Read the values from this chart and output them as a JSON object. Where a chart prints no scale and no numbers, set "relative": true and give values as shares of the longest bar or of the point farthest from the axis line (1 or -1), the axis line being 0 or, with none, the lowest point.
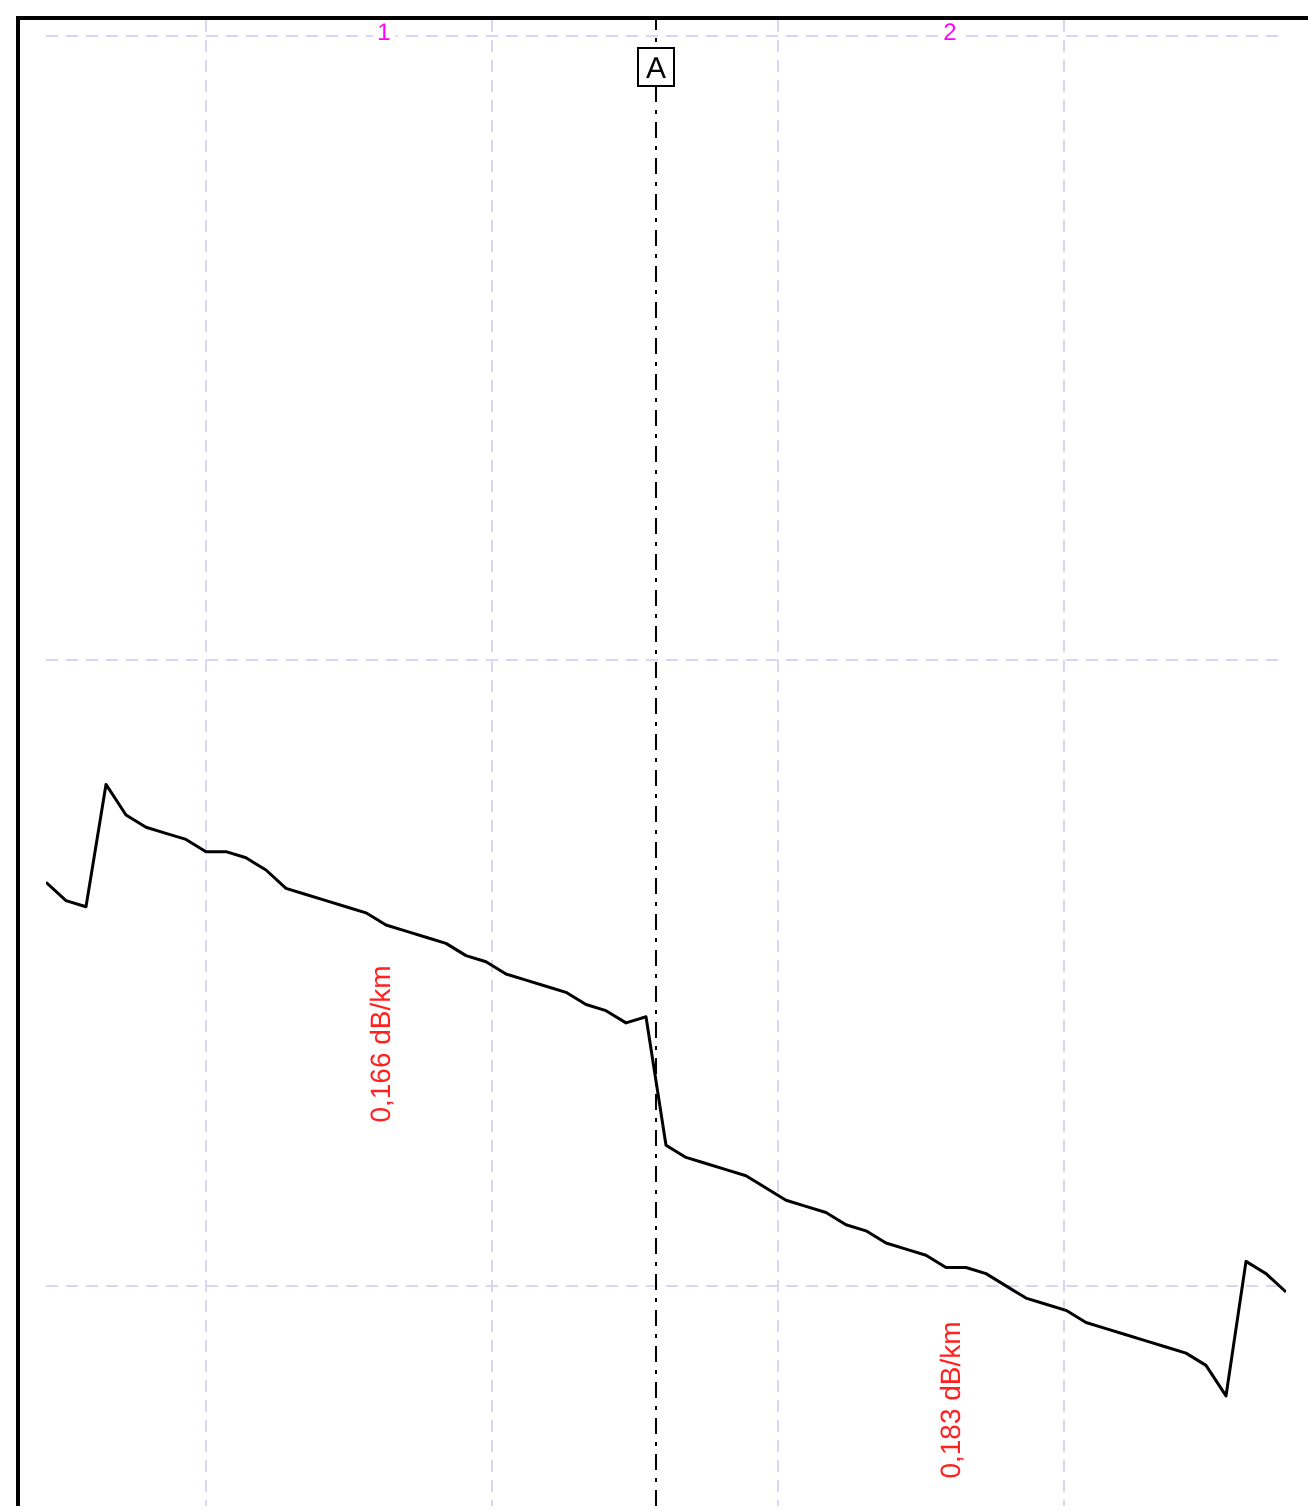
{
  "chart_data": {
    "type": "line",
    "relative": true,
    "grid": true,
    "marker": "none",
    "line_style": "solid",
    "categories": [
      null,
      null,
      null,
      null,
      null,
      null,
      null,
      null,
      null,
      null,
      null,
      null,
      null,
      null,
      null,
      null,
      null,
      null,
      null,
      null,
      null,
      null,
      null,
      null,
      null,
      null,
      null,
      null,
      null,
      null,
      null,
      null,
      null,
      null,
      null,
      null,
      null,
      null,
      null,
      null,
      null,
      null,
      null,
      null,
      null,
      null,
      null,
      null,
      null,
      null,
      null,
      null,
      null,
      null,
      null,
      null,
      null,
      null,
      null,
      null,
      null,
      null,
      null
    ],
    "series": [
      {
        "color": "#000000",
        "values": [
          0.84,
          0.81,
          0.8,
          1,
          0.95,
          0.93,
          0.92,
          0.91,
          0.89,
          0.89,
          0.88,
          0.86,
          0.83,
          0.82,
          0.81,
          0.8,
          0.79,
          0.77,
          0.76,
          0.75,
          0.74,
          0.72,
          0.71,
          0.69,
          0.68,
          0.67,
          0.66,
          0.64,
          0.63,
          0.61,
          0.62,
          0.41,
          0.39,
          0.38,
          0.37,
          0.36,
          0.34,
          0.32,
          0.31,
          0.3,
          0.28,
          0.27,
          0.25,
          0.24,
          0.23,
          0.21,
          0.21,
          0.2,
          0.18,
          0.16,
          0.15,
          0.14,
          0.12,
          0.11,
          0.1,
          0.09,
          0.08,
          0.07,
          0.05,
          0,
          0.22,
          0.2,
          0.17
        ]
      }
    ],
    "annotations": [
      "0,166 dB/km",
      "0,183 dB/km",
      "1",
      "2",
      "A"
    ]
  }
}
